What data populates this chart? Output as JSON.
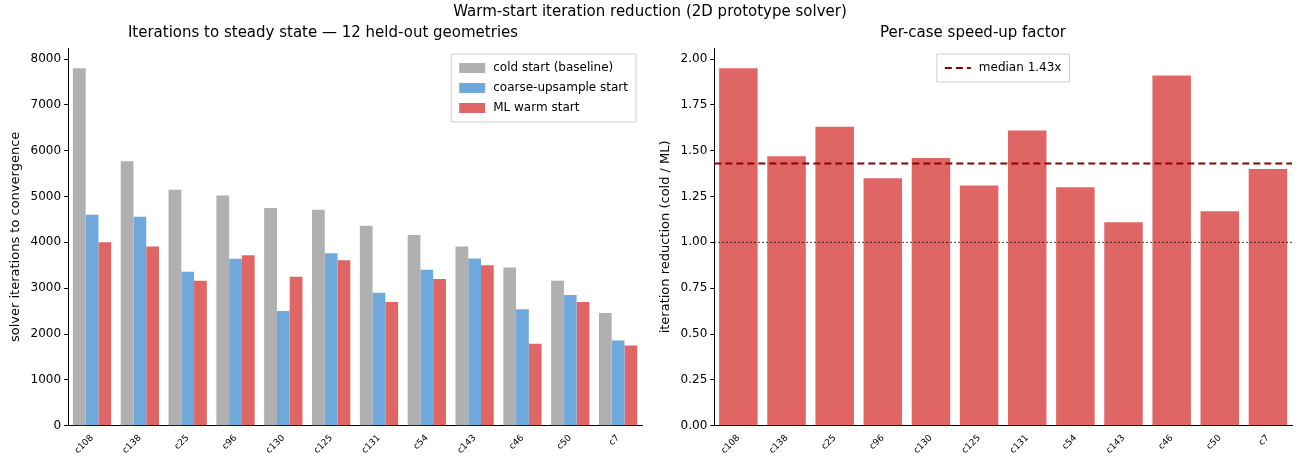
{
  "chart_data": [
    {
      "type": "bar",
      "title": "Iterations to steady state — 12 held-out geometries",
      "ylabel": "solver iterations to convergence",
      "annotations": [
        "Warm-start iteration reduction (2D prototype solver)"
      ],
      "categories": [
        "c108",
        "c138",
        "c25",
        "c96",
        "c130",
        "c125",
        "c131",
        "c54",
        "c143",
        "c46",
        "c50",
        "c7"
      ],
      "series": [
        {
          "name": "cold start (baseline)",
          "color": "#b0b0b0",
          "values": [
            7800,
            5770,
            5150,
            5020,
            4750,
            4710,
            4360,
            4160,
            3910,
            3450,
            3160,
            2460
          ]
        },
        {
          "name": "coarse-upsample start",
          "color": "#6fa8dc",
          "values": [
            4600,
            4560,
            3360,
            3640,
            2500,
            3760,
            2900,
            3400,
            3650,
            2540,
            2850,
            1860
          ]
        },
        {
          "name": "ML warm start",
          "color": "#e06666",
          "values": [
            4000,
            3910,
            3160,
            3720,
            3250,
            3610,
            2700,
            3200,
            3500,
            1790,
            2700,
            1750
          ]
        }
      ],
      "ylim": [
        0,
        8240
      ],
      "yticks": [
        0,
        1000,
        2000,
        3000,
        4000,
        5000,
        6000,
        7000,
        8000
      ],
      "legend": "top right",
      "grid": false
    },
    {
      "type": "bar",
      "title": "Per-case speed-up factor",
      "ylabel": "iteration reduction (cold / ML)",
      "categories": [
        "c108",
        "c138",
        "c25",
        "c96",
        "c130",
        "c125",
        "c131",
        "c54",
        "c143",
        "c46",
        "c50",
        "c7"
      ],
      "values": [
        1.95,
        1.47,
        1.63,
        1.35,
        1.46,
        1.31,
        1.61,
        1.3,
        1.11,
        1.91,
        1.17,
        1.4
      ],
      "color": "#e06666",
      "ylim": [
        0,
        2.06
      ],
      "yticks": [
        {
          "value": 0,
          "label": "0.00"
        },
        {
          "value": 0.25,
          "label": "0.25"
        },
        {
          "value": 0.5,
          "label": "0.50"
        },
        {
          "value": 0.75,
          "label": "0.75"
        },
        {
          "value": 1,
          "label": "1.00"
        },
        {
          "value": 1.25,
          "label": "1.25"
        },
        {
          "value": 1.5,
          "label": "1.50"
        },
        {
          "value": 1.75,
          "label": "1.75"
        },
        {
          "value": 2,
          "label": "2.00"
        }
      ],
      "ref_lines": [
        {
          "axis": "y",
          "value": 1.43,
          "label": "median 1.43x",
          "color": "#8b0000",
          "line_style": "dashed"
        },
        {
          "axis": "y",
          "value": 1.0,
          "color": "#000000",
          "line_style": "dotted"
        }
      ],
      "legend": "top",
      "grid": false
    }
  ]
}
